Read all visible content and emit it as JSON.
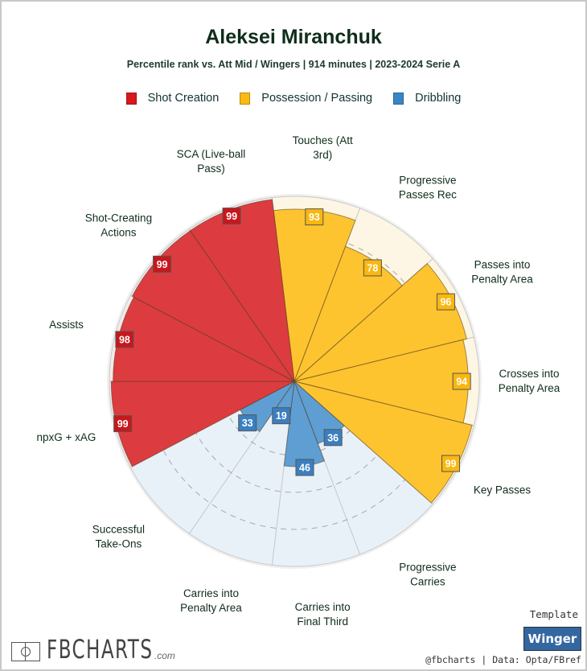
{
  "header": {
    "title": "Aleksei Miranchuk",
    "subtitle": "Percentile rank vs. Att Mid / Wingers | 914 minutes | 2023-2024 Serie A"
  },
  "legend": [
    {
      "label": "Shot Creation",
      "color": "#d7191c"
    },
    {
      "label": "Possession / Passing",
      "color": "#fdb813"
    },
    {
      "label": "Dribbling",
      "color": "#3a86c4"
    }
  ],
  "footer": {
    "logo": "FBCHARTS.com",
    "template_label": "Template",
    "template_value": "Winger",
    "credit": "@fbcharts | Data: Opta/FBref"
  },
  "chart_data": {
    "type": "polar-bar",
    "title": "Aleksei Miranchuk",
    "range": [
      0,
      100
    ],
    "gridlines": [
      20,
      40,
      60,
      80
    ],
    "categories": [
      "Touches (Att 3rd)",
      "Progressive Passes Rec",
      "Passes into Penalty Area",
      "Crosses into Penalty Area",
      "Key Passes",
      "Progressive Carries",
      "Carries into Final Third",
      "Carries into Penalty Area",
      "Successful Take-Ons",
      "npxG + xAG",
      "Assists",
      "Shot-Creating Actions",
      "SCA (Live-ball Pass)"
    ],
    "label_lines": [
      [
        "Touches (Att",
        "3rd)"
      ],
      [
        "Progressive",
        "Passes Rec"
      ],
      [
        "Passes into",
        "Penalty Area"
      ],
      [
        "Crosses into",
        "Penalty Area"
      ],
      [
        "Key Passes"
      ],
      [
        "Progressive",
        "Carries"
      ],
      [
        "Carries into",
        "Final Third"
      ],
      [
        "Carries into",
        "Penalty Area"
      ],
      [
        "Successful",
        "Take-Ons"
      ],
      [
        "npxG + xAG"
      ],
      [
        "Assists"
      ],
      [
        "Shot-Creating",
        "Actions"
      ],
      [
        "SCA (Live-ball",
        "Pass)"
      ]
    ],
    "groups": [
      "Possession / Passing",
      "Possession / Passing",
      "Possession / Passing",
      "Possession / Passing",
      "Possession / Passing",
      "Dribbling",
      "Dribbling",
      "Dribbling",
      "Dribbling",
      "Shot Creation",
      "Shot Creation",
      "Shot Creation",
      "Shot Creation"
    ],
    "values": [
      93,
      78,
      96,
      94,
      99,
      36,
      46,
      19,
      33,
      99,
      98,
      99,
      99
    ],
    "colors": {
      "Shot Creation": {
        "bar": "#dc3c3f",
        "bg": "#f7e9e9",
        "box": "#c8171c"
      },
      "Possession / Passing": {
        "bar": "#fec42f",
        "bg": "#fdf6e4",
        "box": "#f9b70f"
      },
      "Dribbling": {
        "bar": "#5e9ed3",
        "bg": "#e9f1f8",
        "box": "#3a7fc0"
      }
    }
  }
}
